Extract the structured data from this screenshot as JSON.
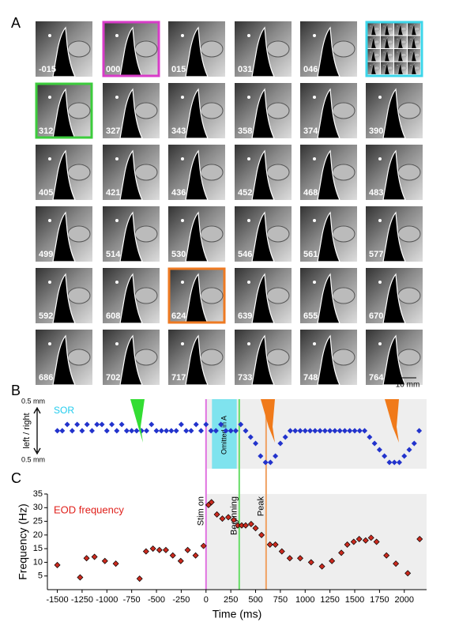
{
  "panel_a": {
    "label": "A",
    "scale_bar": "10 mm",
    "frames": [
      {
        "label": "-015"
      },
      {
        "label": "000",
        "border": "#d83cc8"
      },
      {
        "label": "015"
      },
      {
        "label": "031"
      },
      {
        "label": "046"
      },
      {
        "label": null,
        "border": "#3cd6ea"
      },
      {
        "label": "312",
        "border": "#3ccc3c"
      },
      {
        "label": "327"
      },
      {
        "label": "343"
      },
      {
        "label": "358"
      },
      {
        "label": "374"
      },
      {
        "label": "390"
      },
      {
        "label": "405"
      },
      {
        "label": "421"
      },
      {
        "label": "436"
      },
      {
        "label": "452"
      },
      {
        "label": "468"
      },
      {
        "label": "483"
      },
      {
        "label": "499"
      },
      {
        "label": "514"
      },
      {
        "label": "530"
      },
      {
        "label": "546"
      },
      {
        "label": "561"
      },
      {
        "label": "577"
      },
      {
        "label": "592"
      },
      {
        "label": "608"
      },
      {
        "label": "624",
        "border": "#ee7a22"
      },
      {
        "label": "639"
      },
      {
        "label": "655"
      },
      {
        "label": "670"
      },
      {
        "label": "686"
      },
      {
        "label": "702"
      },
      {
        "label": "717"
      },
      {
        "label": "733"
      },
      {
        "label": "748"
      },
      {
        "label": "764"
      }
    ]
  },
  "chart_data": [
    {
      "type": "scatter",
      "panel_label": "B",
      "y_axis_label": "left / right",
      "y_top_label": "0.5 mm",
      "y_bottom_label": "0.5 mm",
      "xlim": [
        -1600,
        2225
      ],
      "ylim": [
        -0.6,
        0.5
      ],
      "region": {
        "label": "Omitted in A",
        "x": [
          60,
          310
        ],
        "color": "#7fe3ee"
      },
      "series": [
        {
          "name": "SOR",
          "color": "#2233cc",
          "label_color": "#22ccee",
          "x": [
            -1500,
            -1450,
            -1400,
            -1350,
            -1300,
            -1250,
            -1200,
            -1150,
            -1100,
            -1050,
            -1000,
            -950,
            -900,
            -850,
            -800,
            -750,
            -700,
            -650,
            -600,
            -550,
            -500,
            -450,
            -400,
            -350,
            -300,
            -250,
            -200,
            -150,
            -100,
            -50,
            0,
            50,
            100,
            150,
            200,
            250,
            300,
            350,
            400,
            450,
            500,
            550,
            600,
            650,
            700,
            750,
            800,
            850,
            900,
            950,
            1000,
            1050,
            1100,
            1150,
            1200,
            1250,
            1300,
            1350,
            1400,
            1450,
            1500,
            1550,
            1600,
            1650,
            1700,
            1750,
            1800,
            1850,
            1900,
            1950,
            2000,
            2050,
            2100,
            2150
          ],
          "values": [
            0,
            0,
            0.1,
            0,
            0.1,
            0,
            0.1,
            0,
            0.1,
            0.1,
            0,
            0.1,
            0,
            0.1,
            0,
            0,
            0,
            0,
            0,
            0.1,
            0,
            0,
            0,
            0,
            0,
            0.1,
            0,
            0,
            0.1,
            0,
            0.1,
            0,
            0,
            0.1,
            0,
            0,
            0,
            0.1,
            0,
            -0.1,
            -0.2,
            -0.4,
            -0.5,
            -0.5,
            -0.4,
            -0.2,
            -0.1,
            0,
            0,
            0,
            0,
            0,
            0,
            0,
            0,
            0,
            0,
            0,
            0,
            0,
            0,
            0,
            0,
            -0.1,
            -0.2,
            -0.3,
            -0.4,
            -0.5,
            -0.5,
            -0.5,
            -0.4,
            -0.3,
            -0.2,
            0
          ]
        }
      ]
    },
    {
      "type": "scatter",
      "panel_label": "C",
      "y_label": "Frequency (Hz)",
      "x_label": "Time (ms)",
      "xlim": [
        -1600,
        2225
      ],
      "ylim": [
        0,
        35
      ],
      "yticks": [
        5,
        10,
        15,
        20,
        25,
        30,
        35
      ],
      "xticks": [
        -1500,
        -1250,
        -1000,
        -750,
        -500,
        -250,
        0,
        250,
        500,
        750,
        1000,
        1250,
        1500,
        1750,
        2000
      ],
      "markers": [
        {
          "label": "Stim on",
          "x": 0,
          "color": "#e070e0"
        },
        {
          "label": "Beginning",
          "x": 335,
          "color": "#66dd66"
        },
        {
          "label": "Peak",
          "x": 606,
          "color": "#f0a060"
        }
      ],
      "series": [
        {
          "name": "EOD frequency",
          "color": "#cc2a1e",
          "x": [
            -1500,
            -1270,
            -1205,
            -1125,
            -1020,
            -910,
            -670,
            -605,
            -535,
            -470,
            -405,
            -335,
            -255,
            -185,
            -105,
            -25,
            25,
            55,
            110,
            165,
            225,
            280,
            320,
            360,
            400,
            455,
            500,
            560,
            645,
            700,
            765,
            845,
            950,
            1060,
            1170,
            1270,
            1365,
            1425,
            1490,
            1545,
            1610,
            1665,
            1720,
            1820,
            1915,
            2035,
            2155
          ],
          "values": [
            9,
            4.5,
            11.5,
            12,
            10.5,
            9.5,
            4,
            14,
            15,
            14.5,
            14.5,
            12.5,
            10.5,
            14.5,
            12.5,
            16,
            31,
            32,
            27.5,
            26,
            26.5,
            25.5,
            23.5,
            23.5,
            23.5,
            24,
            22.5,
            20,
            16.5,
            16.5,
            14,
            11.5,
            11.5,
            10,
            8.5,
            10.5,
            13.5,
            16.5,
            17.5,
            18.5,
            18,
            19,
            17.5,
            12.5,
            9.5,
            6,
            18.5
          ]
        }
      ]
    }
  ]
}
